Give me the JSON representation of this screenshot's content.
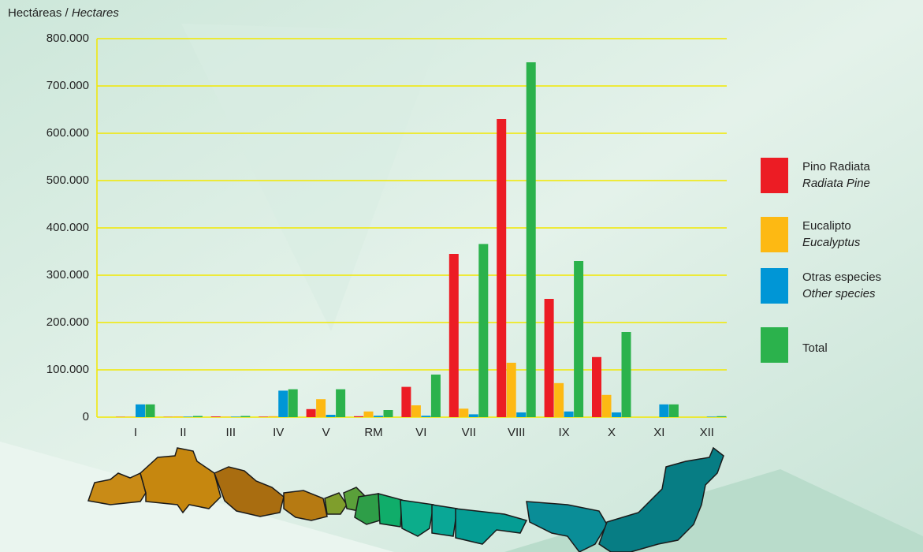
{
  "chart_data": {
    "type": "bar",
    "y_label": "Hectáreas / ",
    "y_label_en": "Hectares",
    "categories": [
      "I",
      "II",
      "III",
      "IV",
      "V",
      "RM",
      "VI",
      "VII",
      "VIII",
      "IX",
      "X",
      "XI",
      "XII"
    ],
    "series": [
      {
        "name": "Pino Radiata",
        "name_en": "Radiata Pine",
        "color": "#ec1c24",
        "values": [
          500,
          500,
          1500,
          1000,
          17000,
          2000,
          64000,
          345000,
          630000,
          250000,
          127000,
          0,
          0
        ]
      },
      {
        "name": "Eucalipto",
        "name_en": "Eucalyptus",
        "color": "#fdb913",
        "values": [
          1000,
          1500,
          1000,
          2000,
          38000,
          12000,
          25000,
          18000,
          115000,
          72000,
          47000,
          0,
          0
        ]
      },
      {
        "name": "Otras especies",
        "name_en": "Other species",
        "color": "#0096d6",
        "values": [
          27000,
          1000,
          1000,
          56000,
          5000,
          3000,
          3000,
          6000,
          10000,
          12000,
          10000,
          27000,
          1000
        ]
      },
      {
        "name": "Total",
        "color": "#2bb24c",
        "values": [
          27000,
          2500,
          2500,
          59000,
          59000,
          15000,
          90000,
          366000,
          750000,
          330000,
          180000,
          27000,
          2000
        ]
      }
    ],
    "ylim": [
      0,
      800000
    ],
    "yticks": [
      0,
      {
        "value": 100000,
        "label": "100.000"
      },
      {
        "value": 200000,
        "label": "200.000"
      },
      {
        "value": 300000,
        "label": "300.000"
      },
      {
        "value": 400000,
        "label": "400.000"
      },
      {
        "value": 500000,
        "label": "500.000"
      },
      {
        "value": 600000,
        "label": "600.000"
      },
      {
        "value": 700000,
        "label": "700.000"
      },
      {
        "value": 800000,
        "label": "800.000"
      }
    ],
    "grid": true,
    "grid_color": "#f2e800",
    "legend": "right"
  }
}
